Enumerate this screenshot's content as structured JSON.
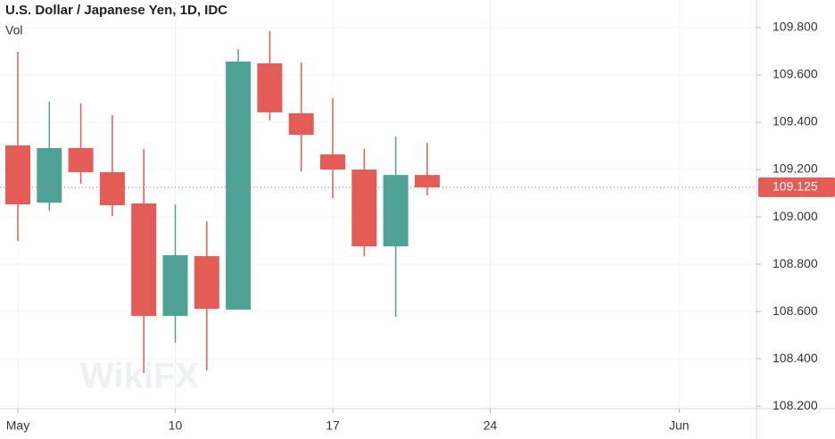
{
  "chart_data": {
    "type": "candlestick",
    "title": "U.S. Dollar / Japanese Yen, 1D, IDC",
    "subtitle": "Vol",
    "watermark": "WikiFX",
    "categories": [
      "May",
      null,
      null,
      null,
      null,
      "10",
      null,
      null,
      null,
      null,
      "17",
      null,
      null,
      null,
      null,
      "24",
      null,
      null,
      null,
      null,
      null,
      "Jun"
    ],
    "open": [
      109.302,
      109.06,
      109.291,
      109.189,
      109.057,
      108.581,
      108.834,
      108.608,
      109.649,
      109.438,
      109.264,
      109.2,
      108.875,
      109.177,
      null,
      null,
      null,
      null,
      null,
      null,
      null,
      null
    ],
    "high": [
      109.698,
      109.487,
      109.479,
      109.43,
      109.287,
      109.053,
      108.981,
      109.709,
      109.785,
      109.653,
      109.502,
      109.287,
      109.34,
      109.313,
      null,
      null,
      null,
      null,
      null,
      null,
      null,
      null
    ],
    "low": [
      108.898,
      109.026,
      109.14,
      109.004,
      108.34,
      108.468,
      108.351,
      108.608,
      109.408,
      109.192,
      109.079,
      108.834,
      108.577,
      109.091,
      null,
      null,
      null,
      null,
      null,
      null,
      null,
      null
    ],
    "close": [
      109.053,
      109.291,
      109.189,
      109.049,
      108.581,
      108.838,
      108.611,
      109.657,
      109.442,
      109.347,
      109.2,
      108.875,
      109.177,
      109.125,
      null,
      null,
      null,
      null,
      null,
      null,
      null,
      null
    ],
    "up_color": "#4ea396",
    "down_color": "#e45c56",
    "last_price": 109.125,
    "ylim": [
      108.189,
      109.917
    ],
    "yticks": [
      {
        "value": 108.2,
        "label": "108.200"
      },
      {
        "value": 108.4,
        "label": "108.400"
      },
      {
        "value": 108.6,
        "label": "108.600"
      },
      {
        "value": 108.8,
        "label": "108.800"
      },
      {
        "value": 109.0,
        "label": "109.000"
      },
      {
        "value": 109.2,
        "label": "109.200"
      },
      {
        "value": 109.4,
        "label": "109.400"
      },
      {
        "value": 109.6,
        "label": "109.600"
      },
      {
        "value": 109.8,
        "label": "109.800"
      }
    ],
    "grid": true
  }
}
